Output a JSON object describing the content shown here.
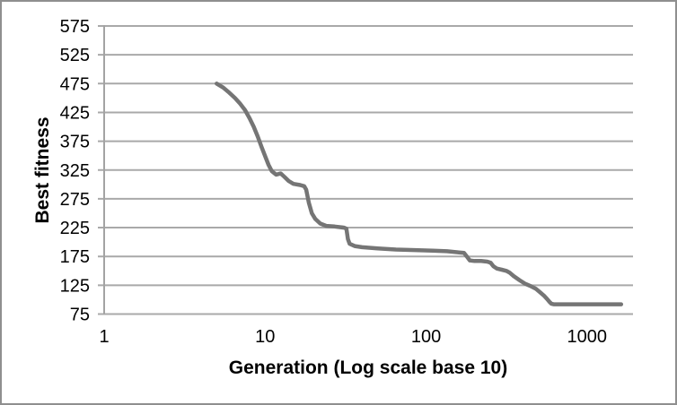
{
  "chart_data": {
    "type": "line",
    "title": "",
    "xlabel": "Generation (Log scale base 10)",
    "ylabel": "Best fitness",
    "x_scale": "log10",
    "x_ticks": [
      1,
      10,
      100,
      1000
    ],
    "x_range": [
      1,
      1930
    ],
    "ylim": [
      75,
      575
    ],
    "y_ticks": [
      75,
      125,
      175,
      225,
      275,
      325,
      375,
      425,
      475,
      525,
      575
    ],
    "grid": "horizontal-only",
    "legend": "none",
    "colors": {
      "line": "#757575",
      "grid": "#a9a9a9",
      "axis": "#a3a3a3",
      "text": "#000000",
      "frame_border": "#8f8f8f"
    },
    "series": [
      {
        "name": "Best fitness",
        "points": [
          [
            5,
            475
          ],
          [
            5.5,
            468
          ],
          [
            6,
            459
          ],
          [
            6.5,
            450
          ],
          [
            7,
            440
          ],
          [
            7.5,
            429
          ],
          [
            8,
            415
          ],
          [
            8.5,
            400
          ],
          [
            9,
            383
          ],
          [
            9.5,
            365
          ],
          [
            10,
            349
          ],
          [
            10.5,
            334
          ],
          [
            11,
            323
          ],
          [
            11.7,
            317
          ],
          [
            12.5,
            319
          ],
          [
            13.2,
            313
          ],
          [
            14,
            306
          ],
          [
            15,
            301
          ],
          [
            16.5,
            299
          ],
          [
            17.5,
            297
          ],
          [
            18,
            291
          ],
          [
            18.7,
            268
          ],
          [
            19.5,
            250
          ],
          [
            20.5,
            240
          ],
          [
            22,
            232
          ],
          [
            24,
            228
          ],
          [
            27,
            227
          ],
          [
            31,
            225
          ],
          [
            32,
            223
          ],
          [
            32.7,
            205
          ],
          [
            33.5,
            197
          ],
          [
            36,
            193
          ],
          [
            40,
            191
          ],
          [
            50,
            189
          ],
          [
            65,
            187
          ],
          [
            85,
            186
          ],
          [
            110,
            185
          ],
          [
            135,
            184
          ],
          [
            160,
            182
          ],
          [
            172,
            181
          ],
          [
            180,
            174
          ],
          [
            187,
            168
          ],
          [
            200,
            167
          ],
          [
            220,
            167
          ],
          [
            240,
            166
          ],
          [
            252,
            164
          ],
          [
            262,
            158
          ],
          [
            275,
            154
          ],
          [
            295,
            152
          ],
          [
            315,
            150
          ],
          [
            330,
            147
          ],
          [
            350,
            141
          ],
          [
            380,
            134
          ],
          [
            410,
            128
          ],
          [
            450,
            123
          ],
          [
            480,
            119
          ],
          [
            510,
            113
          ],
          [
            540,
            107
          ],
          [
            565,
            101
          ],
          [
            585,
            96
          ],
          [
            600,
            93
          ],
          [
            620,
            92
          ],
          [
            700,
            92
          ],
          [
            900,
            92
          ],
          [
            1200,
            92
          ],
          [
            1630,
            92
          ]
        ]
      }
    ]
  }
}
